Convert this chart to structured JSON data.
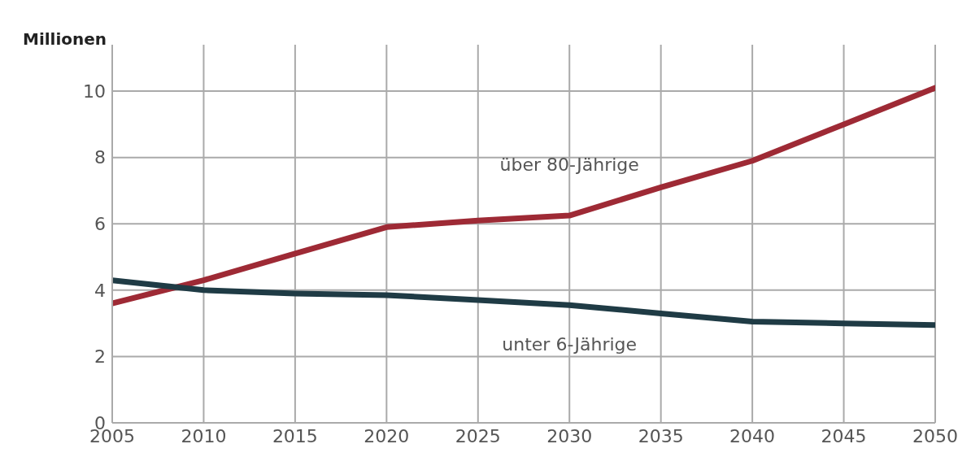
{
  "chart_data": {
    "type": "line",
    "ylabel": "Millionen",
    "x": [
      2005,
      2010,
      2015,
      2020,
      2025,
      2030,
      2035,
      2040,
      2045,
      2050
    ],
    "series": [
      {
        "name": "über 80-Jährige",
        "color": "#9e2a35",
        "values": [
          3.6,
          4.3,
          5.1,
          5.9,
          6.1,
          6.25,
          7.1,
          7.9,
          9.0,
          10.1
        ]
      },
      {
        "name": "unter 6-Jährige",
        "color": "#1f3b45",
        "values": [
          4.3,
          4.0,
          3.9,
          3.85,
          3.7,
          3.55,
          3.3,
          3.05,
          3.0,
          2.95
        ]
      }
    ],
    "xlim": [
      2005,
      2050
    ],
    "xticks": [
      2005,
      2010,
      2015,
      2020,
      2025,
      2030,
      2035,
      2040,
      2045,
      2050
    ],
    "ylim": [
      0,
      11.4
    ],
    "yticks": [
      0,
      2,
      4,
      6,
      8,
      10
    ],
    "grid": true,
    "marker": "none",
    "line_style": "solid",
    "legend": false
  }
}
